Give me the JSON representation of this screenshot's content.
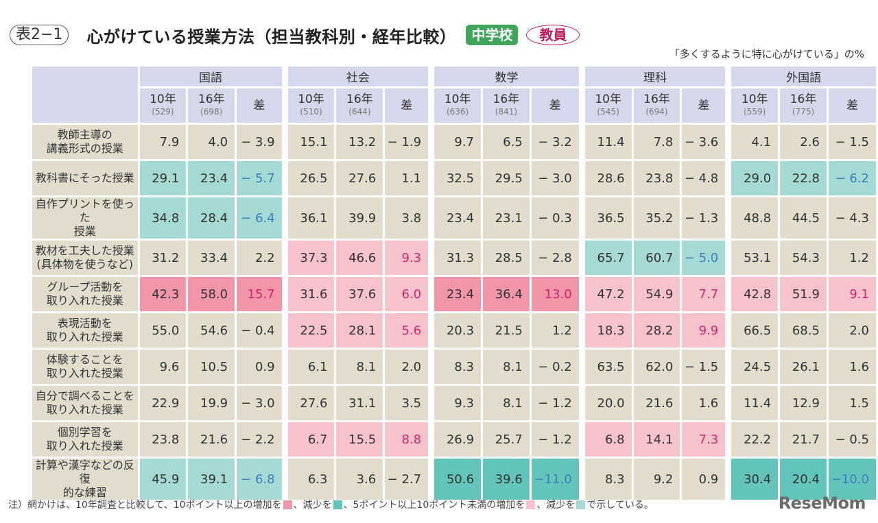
{
  "header": {
    "table_label": "表2−1",
    "title": "心がけている授業方法（担当教科別・経年比較）",
    "badge_school": "中学校",
    "badge_respondent": "教員",
    "unit_note": "「多くするように特に心がけている」の%"
  },
  "colors": {
    "pink_strong": "#f195a9",
    "pink_light": "#f6c2cb",
    "teal_strong": "#63c4b9",
    "teal_light": "#a5d9d3",
    "cell_base": "#e2dccd",
    "header_base": "#d4d8ea",
    "school_badge": "#3fa55a",
    "respondent_badge": "#c2185b"
  },
  "subjects": [
    {
      "name": "国語",
      "y10": "10年",
      "n10": "(529)",
      "y16": "16年",
      "n16": "(698)",
      "diff": "差"
    },
    {
      "name": "社会",
      "y10": "10年",
      "n10": "(510)",
      "y16": "16年",
      "n16": "(644)",
      "diff": "差"
    },
    {
      "name": "数学",
      "y10": "10年",
      "n10": "(636)",
      "y16": "16年",
      "n16": "(841)",
      "diff": "差"
    },
    {
      "name": "理科",
      "y10": "10年",
      "n10": "(545)",
      "y16": "16年",
      "n16": "(694)",
      "diff": "差"
    },
    {
      "name": "外国語",
      "y10": "10年",
      "n10": "(559)",
      "y16": "16年",
      "n16": "(775)",
      "diff": "差"
    }
  ],
  "rows": [
    {
      "label1": "教師主導の",
      "label2": "講義形式の授業",
      "values": [
        [
          "7.9",
          "4.0",
          "− 3.9"
        ],
        [
          "15.1",
          "13.2",
          "− 1.9"
        ],
        [
          "9.7",
          "6.5",
          "− 3.2"
        ],
        [
          "11.4",
          "7.8",
          "− 3.6"
        ],
        [
          "4.1",
          "2.6",
          "− 1.5"
        ]
      ],
      "shade": [
        "",
        "",
        "",
        "",
        ""
      ]
    },
    {
      "label1": "教科書にそった授業",
      "label2": "",
      "values": [
        [
          "29.1",
          "23.4",
          "− 5.7"
        ],
        [
          "26.5",
          "27.6",
          "1.1"
        ],
        [
          "32.5",
          "29.5",
          "− 3.0"
        ],
        [
          "28.6",
          "23.8",
          "− 4.8"
        ],
        [
          "29.0",
          "22.8",
          "− 6.2"
        ]
      ],
      "shade": [
        "teal-light",
        "",
        "",
        "",
        "teal-light"
      ]
    },
    {
      "label1": "自作プリントを使った",
      "label2": "授業",
      "values": [
        [
          "34.8",
          "28.4",
          "− 6.4"
        ],
        [
          "36.1",
          "39.9",
          "3.8"
        ],
        [
          "23.4",
          "23.1",
          "− 0.3"
        ],
        [
          "36.5",
          "35.2",
          "− 1.3"
        ],
        [
          "48.8",
          "44.5",
          "− 4.3"
        ]
      ],
      "shade": [
        "teal-light",
        "",
        "",
        "",
        ""
      ]
    },
    {
      "label1": "教材を工夫した授業",
      "label2": "(具体物を使うなど)",
      "values": [
        [
          "31.2",
          "33.4",
          "2.2"
        ],
        [
          "37.3",
          "46.6",
          "9.3"
        ],
        [
          "31.3",
          "28.5",
          "− 2.8"
        ],
        [
          "65.7",
          "60.7",
          "− 5.0"
        ],
        [
          "53.1",
          "54.3",
          "1.2"
        ]
      ],
      "shade": [
        "",
        "pink-light",
        "",
        "teal-light",
        ""
      ]
    },
    {
      "label1": "グループ活動を",
      "label2": "取り入れた授業",
      "values": [
        [
          "42.3",
          "58.0",
          "15.7"
        ],
        [
          "31.6",
          "37.6",
          "6.0"
        ],
        [
          "23.4",
          "36.4",
          "13.0"
        ],
        [
          "47.2",
          "54.9",
          "7.7"
        ],
        [
          "42.8",
          "51.9",
          "9.1"
        ]
      ],
      "shade": [
        "pink-strong",
        "pink-light",
        "pink-strong",
        "pink-light",
        "pink-light"
      ]
    },
    {
      "label1": "表現活動を",
      "label2": "取り入れた授業",
      "values": [
        [
          "55.0",
          "54.6",
          "− 0.4"
        ],
        [
          "22.5",
          "28.1",
          "5.6"
        ],
        [
          "20.3",
          "21.5",
          "1.2"
        ],
        [
          "18.3",
          "28.2",
          "9.9"
        ],
        [
          "66.5",
          "68.5",
          "2.0"
        ]
      ],
      "shade": [
        "",
        "pink-light",
        "",
        "pink-light",
        ""
      ]
    },
    {
      "label1": "体験することを",
      "label2": "取り入れた授業",
      "values": [
        [
          "9.6",
          "10.5",
          "0.9"
        ],
        [
          "6.1",
          "8.1",
          "2.0"
        ],
        [
          "8.3",
          "8.1",
          "− 0.2"
        ],
        [
          "63.5",
          "62.0",
          "− 1.5"
        ],
        [
          "24.5",
          "26.1",
          "1.6"
        ]
      ],
      "shade": [
        "",
        "",
        "",
        "",
        ""
      ]
    },
    {
      "label1": "自分で調べることを",
      "label2": "取り入れた授業",
      "values": [
        [
          "22.9",
          "19.9",
          "− 3.0"
        ],
        [
          "27.6",
          "31.1",
          "3.5"
        ],
        [
          "9.3",
          "8.1",
          "− 1.2"
        ],
        [
          "20.0",
          "21.6",
          "1.6"
        ],
        [
          "11.4",
          "12.9",
          "1.5"
        ]
      ],
      "shade": [
        "",
        "",
        "",
        "",
        ""
      ]
    },
    {
      "label1": "個別学習を",
      "label2": "取り入れた授業",
      "values": [
        [
          "23.8",
          "21.6",
          "− 2.2"
        ],
        [
          "6.7",
          "15.5",
          "8.8"
        ],
        [
          "26.9",
          "25.7",
          "− 1.2"
        ],
        [
          "6.8",
          "14.1",
          "7.3"
        ],
        [
          "22.2",
          "21.7",
          "− 0.5"
        ]
      ],
      "shade": [
        "",
        "pink-light",
        "",
        "pink-light",
        ""
      ]
    },
    {
      "label1": "計算や漢字などの反復",
      "label2": "的な練習",
      "values": [
        [
          "45.9",
          "39.1",
          "− 6.8"
        ],
        [
          "6.3",
          "3.6",
          "− 2.7"
        ],
        [
          "50.6",
          "39.6",
          "−11.0"
        ],
        [
          "8.3",
          "9.2",
          "0.9"
        ],
        [
          "30.4",
          "20.4",
          "−10.0"
        ]
      ],
      "shade": [
        "teal-light",
        "",
        "teal-strong",
        "",
        "teal-strong"
      ]
    }
  ],
  "footnote": {
    "part1": "注）網かけは、10年調査と比較して、10ポイント以上の増加を",
    "part2": "、減少を",
    "part3": "、5ポイント以上10ポイント未満の増加を",
    "part4": "、減少を",
    "part5": "で示している。"
  },
  "logo": "ReseMom"
}
